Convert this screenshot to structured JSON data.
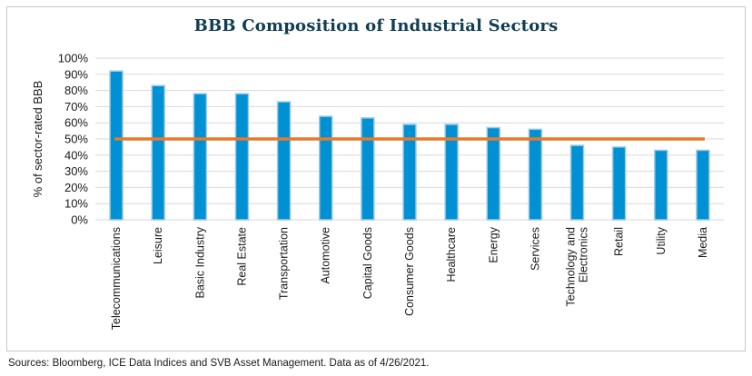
{
  "chart_data": {
    "type": "bar",
    "title": "BBB Composition of Industrial Sectors",
    "xlabel": "",
    "ylabel": "% of sector-rated BBB",
    "ylim": [
      0,
      100
    ],
    "yticks": [
      "0%",
      "10%",
      "20%",
      "30%",
      "40%",
      "50%",
      "60%",
      "70%",
      "80%",
      "90%",
      "100%"
    ],
    "grid": true,
    "categories": [
      "Telecommunications",
      "Leisure",
      "Basic Industry",
      "Real Estate",
      "Transportation",
      "Automotive",
      "Capital Goods",
      "Consumer Goods",
      "Healthcare",
      "Energy",
      "Services",
      "Technology and Electronics",
      "Retail",
      "Utility",
      "Media"
    ],
    "category_lines": [
      [
        "Telecommunications"
      ],
      [
        "Leisure"
      ],
      [
        "Basic Industry"
      ],
      [
        "Real Estate"
      ],
      [
        "Transportation"
      ],
      [
        "Automotive"
      ],
      [
        "Capital Goods"
      ],
      [
        "Consumer Goods"
      ],
      [
        "Healthcare"
      ],
      [
        "Energy"
      ],
      [
        "Services"
      ],
      [
        "Technology and",
        "Electronics"
      ],
      [
        "Retail"
      ],
      [
        "Utility"
      ],
      [
        "Media"
      ]
    ],
    "values": [
      92,
      83,
      78,
      78,
      73,
      64,
      63,
      59,
      59,
      57,
      56,
      46,
      45,
      43,
      43
    ],
    "reference_line": 50,
    "colors": {
      "bar": "#0091d5",
      "bar_edge": "#9ec9e3",
      "reference_line": "#e8792b",
      "grid": "#d9d9d9",
      "title": "#0f3d55"
    }
  },
  "source_note": "Sources: Bloomberg, ICE Data Indices and SVB Asset Management. Data as of 4/26/2021."
}
